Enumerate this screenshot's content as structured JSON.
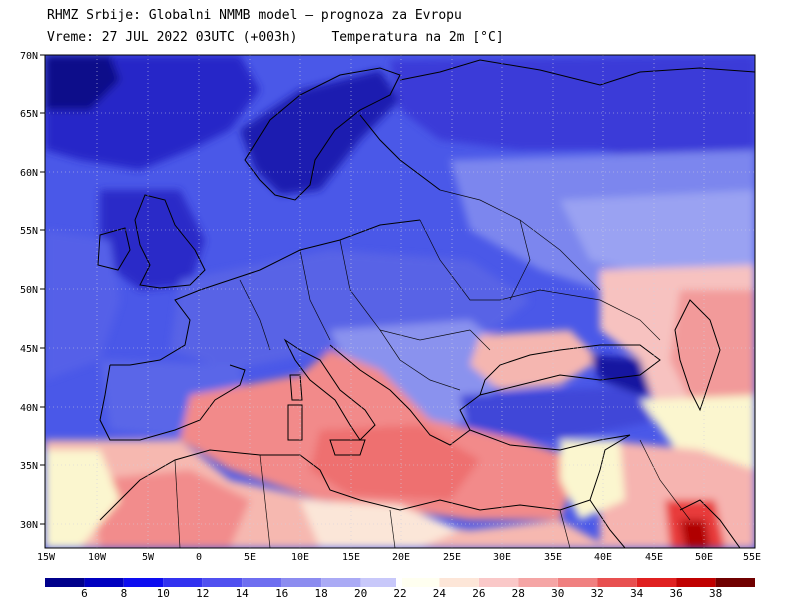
{
  "header": {
    "line1": "RHMZ Srbije: Globalni NMMB model — prognoza za Evropu",
    "line2_time": "Vreme: 27 JUL 2022 03UTC (+003h)",
    "line2_param": "Temperatura na 2m [°C]"
  },
  "map": {
    "lat_labels": [
      "70N",
      "65N",
      "60N",
      "55N",
      "50N",
      "45N",
      "40N",
      "35N",
      "30N"
    ],
    "lon_labels": [
      "15W",
      "10W",
      "5W",
      "0",
      "5E",
      "10E",
      "15E",
      "20E",
      "25E",
      "30E",
      "35E",
      "40E",
      "45E",
      "50E",
      "55E"
    ],
    "gridlines": true,
    "colors": {
      "ocean_cold": "#3838e0",
      "land_cool": "#5a68e6",
      "warm_sea": "#f48888",
      "neutral": "#fbf6cf"
    }
  },
  "colorbar": {
    "labels": [
      "6",
      "8",
      "10",
      "12",
      "14",
      "16",
      "18",
      "20",
      "22",
      "24",
      "26",
      "28",
      "30",
      "32",
      "34",
      "36",
      "38"
    ],
    "colors": [
      "#00008b",
      "#0000c0",
      "#0d0df0",
      "#3232f0",
      "#5050f0",
      "#6e6ef0",
      "#8c8cf0",
      "#aaaaf5",
      "#c8c8fa",
      "#fffff0",
      "#fde6d8",
      "#fac8c8",
      "#f5a5a5",
      "#f08080",
      "#e85050",
      "#e02020",
      "#c00000",
      "#700000"
    ]
  }
}
